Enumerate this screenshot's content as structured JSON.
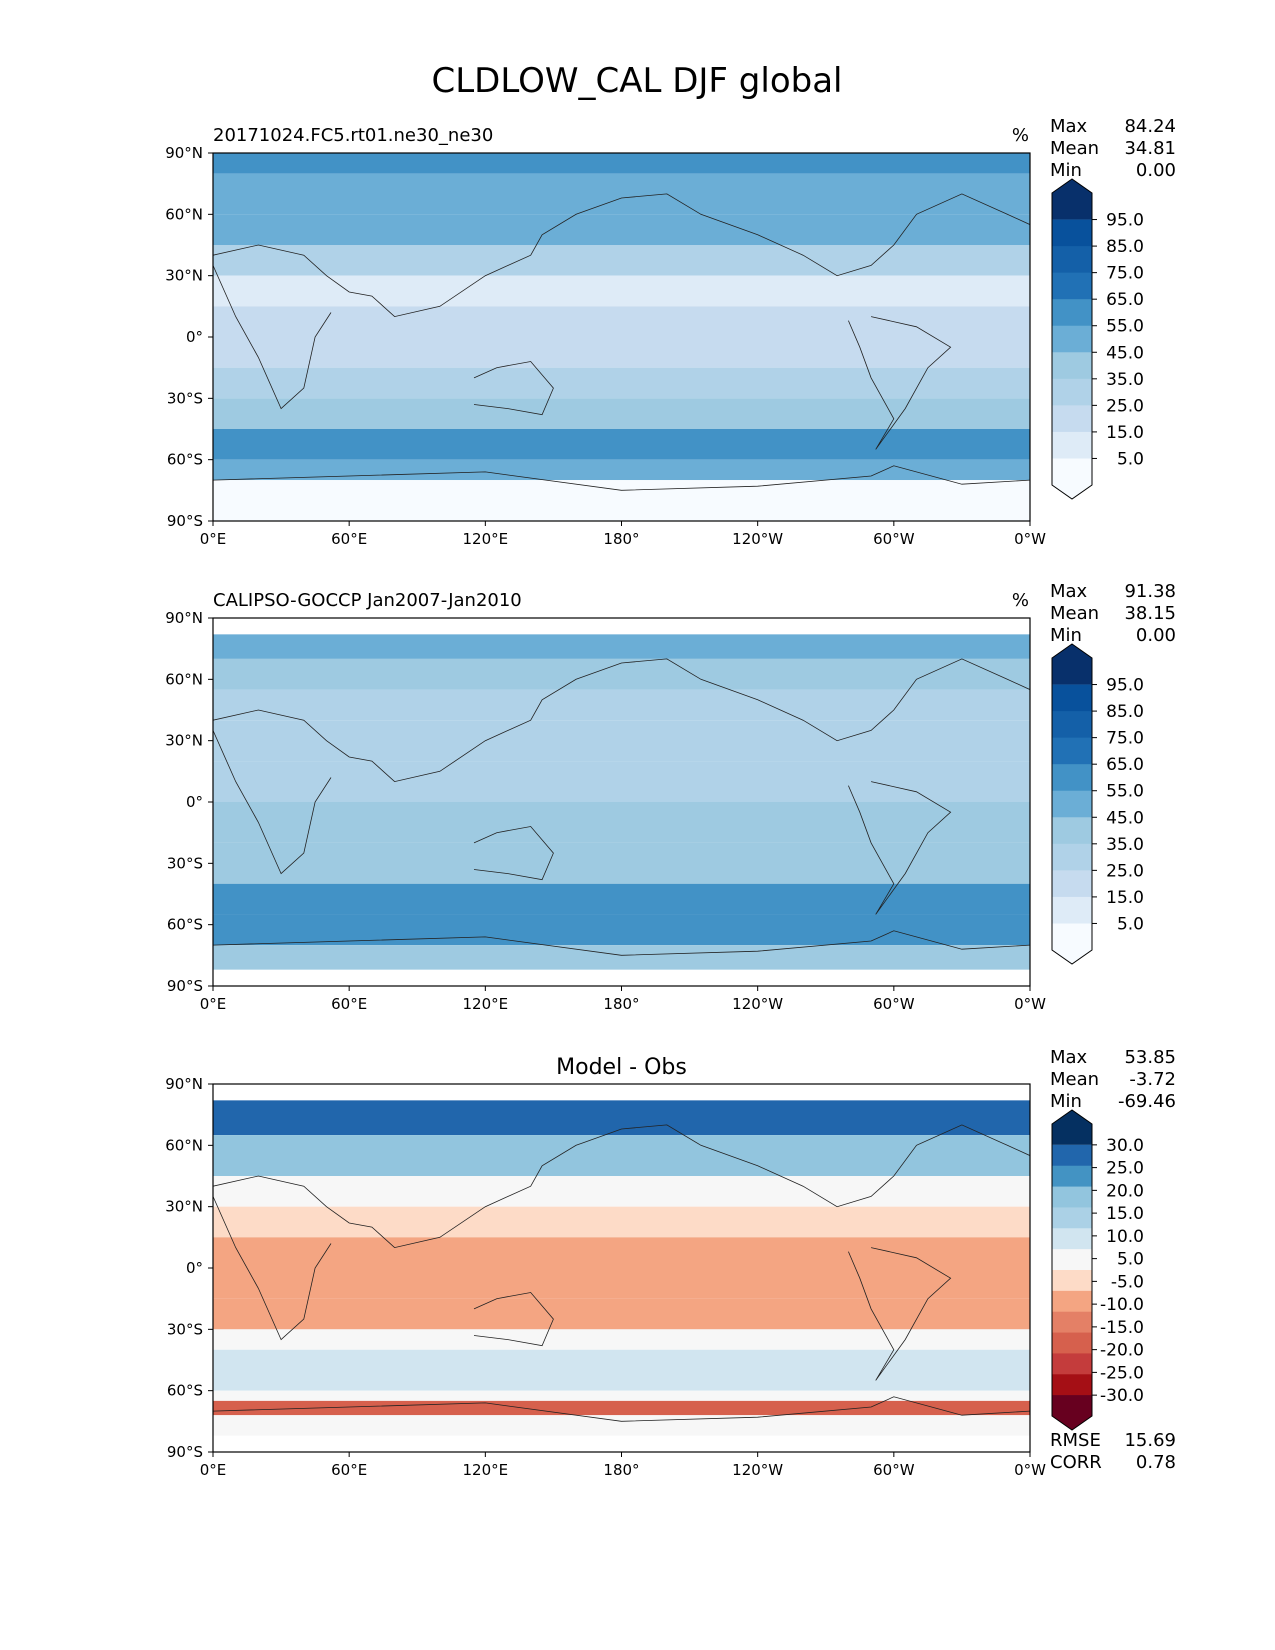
{
  "figure": {
    "title": "CLDLOW_CAL DJF global"
  },
  "colormaps": {
    "blues": [
      "#f7fbff",
      "#deebf7",
      "#c6dbef",
      "#b0d2e8",
      "#9ecae1",
      "#6baed6",
      "#4292c6",
      "#2171b5",
      "#1460a8",
      "#08519c",
      "#08306b"
    ],
    "rdbu": [
      "#67001f",
      "#a50f15",
      "#c43c3c",
      "#d6604d",
      "#e48066",
      "#f4a582",
      "#fddbc7",
      "#f7f7f7",
      "#d1e5f0",
      "#abd1e6",
      "#92c5de",
      "#4393c3",
      "#2166ac",
      "#053061"
    ]
  },
  "chart_data": [
    {
      "type": "heatmap",
      "title": "20171024.FC5.rt01.ne30_ne30",
      "units": "%",
      "stats": [
        {
          "label": "Max",
          "value": "84.24"
        },
        {
          "label": "Mean",
          "value": "34.81"
        },
        {
          "label": "Min",
          "value": "0.00"
        }
      ],
      "colorbar_ticks": [
        "95.0",
        "85.0",
        "75.0",
        "65.0",
        "55.0",
        "45.0",
        "35.0",
        "25.0",
        "15.0",
        "5.0"
      ],
      "colormap": "blues",
      "x_ticks": [
        "0°E",
        "60°E",
        "120°E",
        "180°",
        "120°W",
        "60°W",
        "0°W"
      ],
      "y_ticks": [
        "90°N",
        "60°N",
        "30°N",
        "0°",
        "30°S",
        "60°S",
        "90°S"
      ],
      "xlim": [
        0,
        360
      ],
      "ylim": [
        -90,
        90
      ],
      "bands": [
        {
          "lat": [
            90,
            80
          ],
          "value": 62
        },
        {
          "lat": [
            80,
            60
          ],
          "value": 58
        },
        {
          "lat": [
            60,
            45
          ],
          "value": 50
        },
        {
          "lat": [
            45,
            30
          ],
          "value": 30
        },
        {
          "lat": [
            30,
            15
          ],
          "value": 15
        },
        {
          "lat": [
            15,
            0
          ],
          "value": 20
        },
        {
          "lat": [
            0,
            -15
          ],
          "value": 25
        },
        {
          "lat": [
            -15,
            -30
          ],
          "value": 30
        },
        {
          "lat": [
            -30,
            -45
          ],
          "value": 48
        },
        {
          "lat": [
            -45,
            -60
          ],
          "value": 62
        },
        {
          "lat": [
            -60,
            -70
          ],
          "value": 55
        },
        {
          "lat": [
            -70,
            -90
          ],
          "value": 8
        }
      ]
    },
    {
      "type": "heatmap",
      "title": "CALIPSO-GOCCP Jan2007-Jan2010",
      "units": "%",
      "stats": [
        {
          "label": "Max",
          "value": "91.38"
        },
        {
          "label": "Mean",
          "value": "38.15"
        },
        {
          "label": "Min",
          "value": "0.00"
        }
      ],
      "colorbar_ticks": [
        "95.0",
        "85.0",
        "75.0",
        "65.0",
        "55.0",
        "45.0",
        "35.0",
        "25.0",
        "15.0",
        "5.0"
      ],
      "colormap": "blues",
      "x_ticks": [
        "0°E",
        "60°E",
        "120°E",
        "180°",
        "120°W",
        "60°W",
        "0°W"
      ],
      "y_ticks": [
        "90°N",
        "60°N",
        "30°N",
        "0°",
        "30°S",
        "60°S",
        "90°S"
      ],
      "xlim": [
        0,
        360
      ],
      "ylim": [
        -90,
        90
      ],
      "bands": [
        {
          "lat": [
            82,
            70
          ],
          "value": 55
        },
        {
          "lat": [
            70,
            55
          ],
          "value": 48
        },
        {
          "lat": [
            55,
            40
          ],
          "value": 38
        },
        {
          "lat": [
            40,
            20
          ],
          "value": 30
        },
        {
          "lat": [
            20,
            0
          ],
          "value": 35
        },
        {
          "lat": [
            0,
            -20
          ],
          "value": 40
        },
        {
          "lat": [
            -20,
            -40
          ],
          "value": 48
        },
        {
          "lat": [
            -40,
            -55
          ],
          "value": 60
        },
        {
          "lat": [
            -55,
            -70
          ],
          "value": 65
        },
        {
          "lat": [
            -70,
            -82
          ],
          "value": 40
        }
      ]
    },
    {
      "type": "heatmap",
      "title": "Model - Obs",
      "stats": [
        {
          "label": "Max",
          "value": "53.85"
        },
        {
          "label": "Mean",
          "value": "-3.72"
        },
        {
          "label": "Min",
          "value": "-69.46"
        }
      ],
      "bottom_stats": [
        {
          "label": "RMSE",
          "value": "15.69"
        },
        {
          "label": "CORR",
          "value": "0.78"
        }
      ],
      "colorbar_ticks": [
        "30.0",
        "25.0",
        "20.0",
        "15.0",
        "10.0",
        "5.0",
        "-5.0",
        "-10.0",
        "-15.0",
        "-20.0",
        "-25.0",
        "-30.0"
      ],
      "colormap": "rdbu",
      "x_ticks": [
        "0°E",
        "60°E",
        "120°E",
        "180°",
        "120°W",
        "60°W",
        "0°W"
      ],
      "y_ticks": [
        "90°N",
        "60°N",
        "30°N",
        "0°",
        "30°S",
        "60°S",
        "90°S"
      ],
      "xlim": [
        0,
        360
      ],
      "ylim": [
        -90,
        90
      ],
      "bands": [
        {
          "lat": [
            82,
            65
          ],
          "value": 25
        },
        {
          "lat": [
            65,
            45
          ],
          "value": 15
        },
        {
          "lat": [
            45,
            30
          ],
          "value": 3
        },
        {
          "lat": [
            30,
            15
          ],
          "value": -10
        },
        {
          "lat": [
            15,
            -15
          ],
          "value": -12
        },
        {
          "lat": [
            -15,
            -30
          ],
          "value": -15
        },
        {
          "lat": [
            -30,
            -40
          ],
          "value": 0
        },
        {
          "lat": [
            -40,
            -60
          ],
          "value": 8
        },
        {
          "lat": [
            -60,
            -65
          ],
          "value": 2
        },
        {
          "lat": [
            -65,
            -72
          ],
          "value": -25
        },
        {
          "lat": [
            -72,
            -82
          ],
          "value": 0
        }
      ]
    }
  ]
}
